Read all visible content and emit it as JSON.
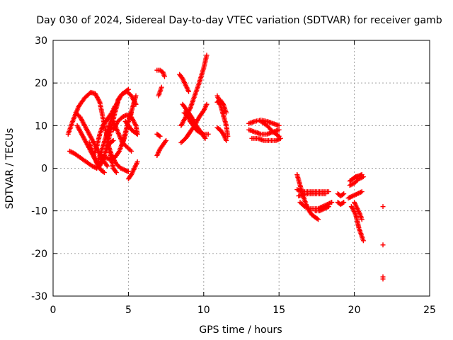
{
  "chart_data": {
    "type": "scatter",
    "title": "Day 030 of 2024, Sidereal Day-to-day VTEC variation (SDTVAR) for receiver gamb",
    "xlabel": "GPS time / hours",
    "ylabel": "SDTVAR / TECUs",
    "xlim": [
      0,
      25
    ],
    "ylim": [
      -30,
      30
    ],
    "xticks": [
      "0",
      "5",
      "10",
      "15",
      "20",
      "25"
    ],
    "yticks": [
      "30",
      "20",
      "10",
      "0",
      "-10",
      "-20",
      "-30"
    ],
    "grid": true,
    "marker": "plus",
    "color": "#ff0000",
    "segments": [
      {
        "x": [
          1.0,
          1.3,
          1.7,
          2.1,
          2.5,
          2.8,
          3.1,
          3.3,
          3.6,
          3.8,
          4.0,
          4.2
        ],
        "y": [
          8,
          11,
          14.5,
          16.5,
          17.8,
          17.5,
          15.5,
          12,
          7,
          3,
          0,
          -1
        ]
      },
      {
        "x": [
          1.1,
          1.4,
          1.8,
          2.2,
          2.6,
          2.9,
          3.2,
          3.4
        ],
        "y": [
          4,
          3.5,
          2.5,
          1.5,
          0.5,
          0,
          1,
          3
        ]
      },
      {
        "x": [
          1.5,
          1.8,
          2.1,
          2.4,
          2.7,
          3.0,
          3.2,
          3.4,
          3.6
        ],
        "y": [
          13,
          12,
          10,
          8,
          6,
          4,
          2.5,
          1.5,
          0.5
        ]
      },
      {
        "x": [
          1.6,
          1.9,
          2.2,
          2.5,
          2.8,
          3.0
        ],
        "y": [
          10,
          8,
          6,
          4,
          2,
          0.5
        ]
      },
      {
        "x": [
          2.4,
          2.6,
          2.8,
          3.0,
          3.2,
          3.4
        ],
        "y": [
          6,
          4,
          2,
          0.5,
          -0.5,
          -1
        ]
      },
      {
        "x": [
          2.6,
          2.8,
          3.0,
          3.2,
          3.4,
          3.6,
          3.8,
          4.0
        ],
        "y": [
          4,
          2,
          1,
          1.5,
          3,
          5,
          6,
          6.5
        ]
      },
      {
        "x": [
          2.7,
          2.9,
          3.1,
          3.3,
          3.5,
          3.7,
          3.9,
          4.1
        ],
        "y": [
          3,
          5,
          8,
          10,
          11,
          12,
          13,
          14.5
        ]
      },
      {
        "x": [
          3.0,
          3.3,
          3.6,
          3.9,
          4.2,
          4.5,
          4.8,
          5.0
        ],
        "y": [
          2,
          5,
          8.5,
          12,
          15,
          17,
          18,
          18.5
        ]
      },
      {
        "x": [
          3.2,
          3.5,
          3.8,
          4.1,
          4.4,
          4.7,
          5.0,
          5.3,
          5.5
        ],
        "y": [
          3,
          2.5,
          2,
          2.5,
          4,
          7,
          11,
          14.5,
          17
        ]
      },
      {
        "x": [
          3.5,
          3.7,
          3.9,
          4.1,
          4.3
        ],
        "y": [
          4,
          7,
          10,
          13,
          15.5
        ]
      },
      {
        "x": [
          3.6,
          3.9,
          4.2,
          4.5,
          4.8,
          5.0
        ],
        "y": [
          6,
          3,
          1,
          0,
          -0.5,
          -0.8
        ]
      },
      {
        "x": [
          4.0,
          4.3,
          4.6,
          4.9,
          5.2,
          5.5,
          5.6
        ],
        "y": [
          9,
          11,
          12,
          12.5,
          12,
          10,
          8
        ]
      },
      {
        "x": [
          4.0,
          4.3,
          4.6,
          4.9,
          5.2
        ],
        "y": [
          11,
          8.5,
          6,
          5,
          4
        ]
      },
      {
        "x": [
          4.3,
          4.6,
          4.9,
          5.2,
          5.5
        ],
        "y": [
          16,
          17.5,
          18,
          17,
          15
        ]
      },
      {
        "x": [
          4.6,
          4.8,
          5.0,
          5.2
        ],
        "y": [
          5.5,
          8,
          11,
          13
        ]
      },
      {
        "x": [
          4.8,
          5.0,
          5.2,
          5.4,
          5.6
        ],
        "y": [
          11,
          10,
          9,
          8.5,
          8
        ]
      },
      {
        "x": [
          5.0,
          5.2,
          5.4,
          5.6
        ],
        "y": [
          -2.5,
          -1.5,
          0,
          1.5
        ]
      },
      {
        "x": [
          6.9,
          7.1
        ],
        "y": [
          8,
          7.5
        ]
      },
      {
        "x": [
          6.9,
          7.1,
          7.3,
          7.5
        ],
        "y": [
          3,
          4.5,
          5.5,
          6.5
        ]
      },
      {
        "x": [
          7.0,
          7.1,
          7.2
        ],
        "y": [
          17,
          18,
          19
        ]
      },
      {
        "x": [
          6.9,
          7.1,
          7.3,
          7.4
        ],
        "y": [
          23,
          23,
          22.5,
          21.5
        ]
      },
      {
        "x": [
          8.4,
          8.6,
          8.8,
          9.0
        ],
        "y": [
          22,
          21,
          19.5,
          18
        ]
      },
      {
        "x": [
          8.5,
          8.8,
          9.1,
          9.4,
          9.7,
          10.0,
          10.2
        ],
        "y": [
          10,
          12,
          14,
          17,
          20,
          23.5,
          26.5
        ]
      },
      {
        "x": [
          8.5,
          8.8,
          9.1,
          9.4,
          9.7,
          10.0,
          10.2
        ],
        "y": [
          6,
          7,
          8.5,
          10,
          12,
          13.5,
          15
        ]
      },
      {
        "x": [
          8.6,
          8.9,
          9.2,
          9.5,
          9.8,
          10.1
        ],
        "y": [
          15,
          13.5,
          12,
          10,
          8.5,
          7
        ]
      },
      {
        "x": [
          8.7,
          8.9,
          9.1,
          9.3,
          9.5,
          9.7,
          10.0,
          10.3
        ],
        "y": [
          13,
          12.5,
          11,
          10,
          9,
          8.5,
          8,
          8
        ]
      },
      {
        "x": [
          10.9,
          11.1,
          11.3,
          11.5,
          11.6
        ],
        "y": [
          17,
          15,
          12.5,
          10,
          7.5
        ]
      },
      {
        "x": [
          10.9,
          11.1,
          11.3,
          11.5
        ],
        "y": [
          15.5,
          16,
          15,
          13
        ]
      },
      {
        "x": [
          10.9,
          11.1,
          11.3,
          11.5
        ],
        "y": [
          9.5,
          9,
          8,
          6.5
        ]
      },
      {
        "x": [
          13.0,
          13.4,
          13.8,
          14.2,
          14.6,
          15.0
        ],
        "y": [
          10.5,
          11,
          11.3,
          11,
          10.5,
          10
        ]
      },
      {
        "x": [
          13.0,
          13.4,
          13.8,
          14.2,
          14.6,
          15.0
        ],
        "y": [
          9,
          8.5,
          8,
          8,
          8.5,
          9
        ]
      },
      {
        "x": [
          13.2,
          13.6,
          14.0,
          14.4,
          14.8,
          15.1
        ],
        "y": [
          7,
          7,
          6.5,
          6.5,
          6.5,
          7
        ]
      },
      {
        "x": [
          13.8,
          14.2,
          14.6,
          15.0
        ],
        "y": [
          11,
          10,
          8.5,
          7.5
        ]
      },
      {
        "x": [
          16.2,
          16.4,
          16.6,
          16.8,
          17.0,
          17.2,
          17.4,
          17.6
        ],
        "y": [
          -1.5,
          -4,
          -6.5,
          -8.5,
          -10,
          -11,
          -11.5,
          -12
        ]
      },
      {
        "x": [
          16.2,
          16.5,
          16.8,
          17.1,
          17.4,
          17.7,
          18.0,
          18.3
        ],
        "y": [
          -5,
          -5.5,
          -5.5,
          -5.5,
          -5.5,
          -5.5,
          -5.5,
          -5.5
        ]
      },
      {
        "x": [
          16.3,
          16.6,
          16.9,
          17.2,
          17.5,
          17.8,
          18.1
        ],
        "y": [
          -6.5,
          -6.2,
          -6,
          -6,
          -6,
          -6,
          -6
        ]
      },
      {
        "x": [
          16.4,
          16.7,
          17.0,
          17.3,
          17.6,
          17.9,
          18.2,
          18.5
        ],
        "y": [
          -8,
          -9,
          -9.5,
          -9.5,
          -9.5,
          -9,
          -8.5,
          -8
        ]
      },
      {
        "x": [
          17.4,
          17.7,
          18.0,
          18.3
        ],
        "y": [
          -10,
          -10,
          -9.5,
          -9
        ]
      },
      {
        "x": [
          18.9,
          19.1,
          19.3
        ],
        "y": [
          -6,
          -6.5,
          -6
        ]
      },
      {
        "x": [
          18.9,
          19.1,
          19.3
        ],
        "y": [
          -8,
          -8.5,
          -8
        ]
      },
      {
        "x": [
          19.7,
          19.9,
          20.1,
          20.3,
          20.5
        ],
        "y": [
          -3,
          -2.5,
          -2,
          -1.8,
          -1.5
        ]
      },
      {
        "x": [
          19.7,
          20.0,
          20.3,
          20.6
        ],
        "y": [
          -4,
          -3.5,
          -2.5,
          -2
        ]
      },
      {
        "x": [
          19.6,
          19.9,
          20.2,
          20.5
        ],
        "y": [
          -7,
          -6.5,
          -6,
          -5.5
        ]
      },
      {
        "x": [
          19.8,
          19.9,
          20.1,
          20.2,
          20.3,
          20.4,
          20.5,
          20.6
        ],
        "y": [
          -9,
          -9.5,
          -11,
          -12.5,
          -14,
          -15,
          -16,
          -17
        ]
      },
      {
        "x": [
          20.0,
          20.2,
          20.4,
          20.5
        ],
        "y": [
          -8,
          -9.5,
          -11,
          -12
        ]
      },
      {
        "x": [
          21.9
        ],
        "y": [
          -9
        ]
      },
      {
        "x": [
          21.9
        ],
        "y": [
          -18
        ]
      },
      {
        "x": [
          21.9
        ],
        "y": [
          -25.5
        ]
      },
      {
        "x": [
          21.9
        ],
        "y": [
          -26
        ]
      }
    ]
  }
}
